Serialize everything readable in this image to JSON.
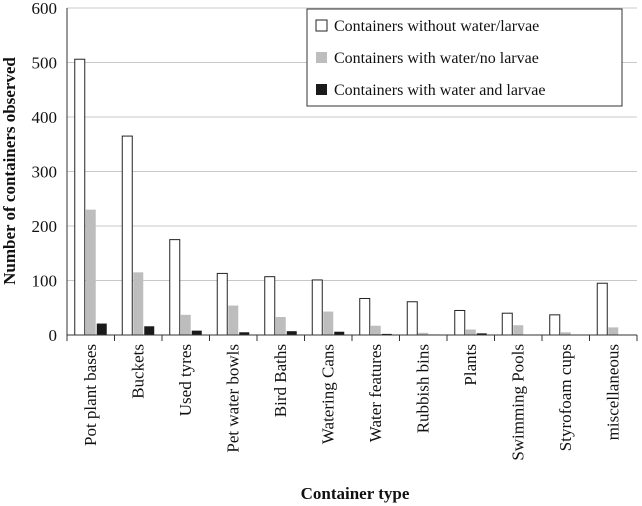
{
  "chart_data": {
    "type": "bar",
    "title": "",
    "xlabel": "Container type",
    "ylabel": "Number of containers observed",
    "ylim": [
      0,
      600
    ],
    "yticks": [
      0,
      100,
      200,
      300,
      400,
      500,
      600
    ],
    "grid": true,
    "legend_position": "top-right",
    "categories": [
      "Pot plant bases",
      "Buckets",
      "Used tyres",
      "Pet water bowls",
      "Bird Baths",
      "Watering Cans",
      "Water features",
      "Rubbish bins",
      "Plants",
      "Swimming Pools",
      "Styrofoam cups",
      "miscellaneous"
    ],
    "series": [
      {
        "name": "Containers without water/larvae",
        "color": "#ffffff",
        "values": [
          506,
          365,
          175,
          113,
          107,
          101,
          67,
          61,
          45,
          40,
          37,
          95
        ]
      },
      {
        "name": "Containers with water/no larvae",
        "color": "#bdbdbd",
        "values": [
          230,
          115,
          37,
          54,
          33,
          43,
          17,
          4,
          10,
          18,
          5,
          14
        ]
      },
      {
        "name": "Containers with water and larvae",
        "color": "#1a1a1a",
        "values": [
          21,
          16,
          8,
          5,
          7,
          6,
          2,
          1,
          3,
          0,
          0,
          0
        ]
      }
    ]
  }
}
